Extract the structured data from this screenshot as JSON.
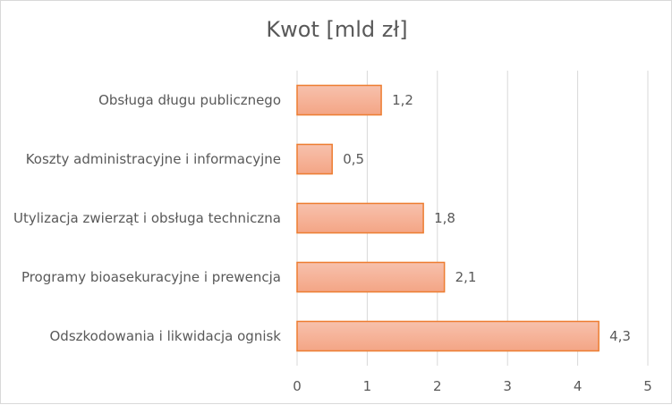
{
  "chart_data": {
    "type": "bar",
    "orientation": "horizontal",
    "title": "Kwot [mld zł]",
    "categories": [
      "Obsługa długu publicznego",
      "Koszty administracyjne i informacyjne",
      "Utylizacja zwierząt i obsługa techniczna",
      "Programy bioasekuracyjne i prewencja",
      "Odszkodowania i likwidacja ognisk"
    ],
    "values": [
      1.2,
      0.5,
      1.8,
      2.1,
      4.3
    ],
    "value_labels": [
      "1,2",
      "0,5",
      "1,8",
      "2,1",
      "4,3"
    ],
    "xlim": [
      0,
      5
    ],
    "x_ticks": [
      0,
      1,
      2,
      3,
      4,
      5
    ],
    "x_tick_labels": [
      "0",
      "1",
      "2",
      "3",
      "4",
      "5"
    ],
    "grid": "vertical",
    "legend": "none",
    "colors": {
      "bar_fill": "#f5b097",
      "bar_stroke": "#ed7d31",
      "grid": "#d9d9d9",
      "text": "#595959"
    }
  }
}
